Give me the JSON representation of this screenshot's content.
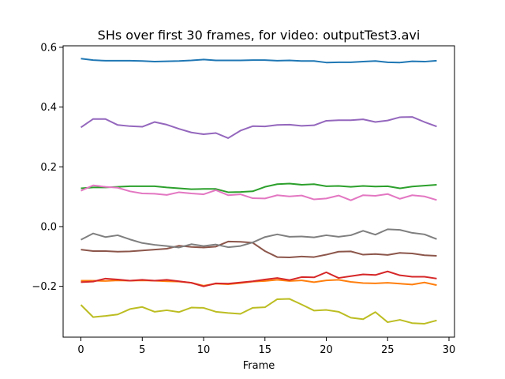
{
  "chart_data": {
    "type": "line",
    "title": "SHs over first 30 frames, for video: outputTest3.avi",
    "xlabel": "Frame",
    "ylabel": "",
    "xlim": [
      -1.45,
      30.45
    ],
    "ylim": [
      -0.37,
      0.605
    ],
    "xticks": [
      0,
      5,
      10,
      15,
      20,
      25,
      30
    ],
    "yticks": [
      -0.2,
      0.0,
      0.2,
      0.4,
      0.6
    ],
    "xtick_labels": [
      "0",
      "5",
      "10",
      "15",
      "20",
      "25",
      "30"
    ],
    "ytick_labels": [
      "−0.2",
      "0.0",
      "0.2",
      "0.4",
      "0.6"
    ],
    "grid": false,
    "legend": "none",
    "x": [
      0,
      1,
      2,
      3,
      4,
      5,
      6,
      7,
      8,
      9,
      10,
      11,
      12,
      13,
      14,
      15,
      16,
      17,
      18,
      19,
      20,
      21,
      22,
      23,
      24,
      25,
      26,
      27,
      28,
      29
    ],
    "series": [
      {
        "color": "#1f77b4",
        "values": [
          0.562,
          0.557,
          0.555,
          0.555,
          0.555,
          0.554,
          0.552,
          0.553,
          0.554,
          0.556,
          0.559,
          0.556,
          0.556,
          0.556,
          0.557,
          0.557,
          0.555,
          0.556,
          0.554,
          0.554,
          0.549,
          0.55,
          0.55,
          0.552,
          0.554,
          0.55,
          0.549,
          0.553,
          0.552,
          0.555
        ]
      },
      {
        "color": "#ff7f0e",
        "values": [
          -0.181,
          -0.181,
          -0.182,
          -0.18,
          -0.181,
          -0.18,
          -0.181,
          -0.183,
          -0.184,
          -0.188,
          -0.198,
          -0.191,
          -0.193,
          -0.189,
          -0.184,
          -0.182,
          -0.178,
          -0.182,
          -0.18,
          -0.186,
          -0.18,
          -0.178,
          -0.185,
          -0.189,
          -0.19,
          -0.188,
          -0.191,
          -0.194,
          -0.187,
          -0.196
        ]
      },
      {
        "color": "#2ca02c",
        "values": [
          0.128,
          0.131,
          0.131,
          0.133,
          0.135,
          0.135,
          0.135,
          0.131,
          0.128,
          0.125,
          0.126,
          0.126,
          0.115,
          0.116,
          0.118,
          0.133,
          0.142,
          0.144,
          0.14,
          0.142,
          0.135,
          0.136,
          0.133,
          0.136,
          0.134,
          0.135,
          0.128,
          0.134,
          0.137,
          0.14
        ]
      },
      {
        "color": "#d62728",
        "values": [
          -0.186,
          -0.184,
          -0.174,
          -0.177,
          -0.181,
          -0.178,
          -0.181,
          -0.178,
          -0.183,
          -0.188,
          -0.2,
          -0.19,
          -0.191,
          -0.187,
          -0.183,
          -0.177,
          -0.172,
          -0.179,
          -0.169,
          -0.17,
          -0.153,
          -0.172,
          -0.166,
          -0.16,
          -0.162,
          -0.15,
          -0.163,
          -0.168,
          -0.168,
          -0.174
        ]
      },
      {
        "color": "#9467bd",
        "values": [
          0.332,
          0.36,
          0.36,
          0.34,
          0.336,
          0.334,
          0.35,
          0.341,
          0.327,
          0.315,
          0.309,
          0.313,
          0.296,
          0.321,
          0.336,
          0.335,
          0.34,
          0.341,
          0.337,
          0.339,
          0.354,
          0.356,
          0.356,
          0.359,
          0.35,
          0.355,
          0.366,
          0.367,
          0.35,
          0.335
        ]
      },
      {
        "color": "#8c564b",
        "values": [
          -0.077,
          -0.082,
          -0.082,
          -0.084,
          -0.083,
          -0.08,
          -0.077,
          -0.074,
          -0.064,
          -0.068,
          -0.07,
          -0.067,
          -0.05,
          -0.051,
          -0.054,
          -0.082,
          -0.102,
          -0.103,
          -0.1,
          -0.102,
          -0.094,
          -0.084,
          -0.083,
          -0.094,
          -0.092,
          -0.095,
          -0.088,
          -0.09,
          -0.096,
          -0.098
        ]
      },
      {
        "color": "#e377c2",
        "values": [
          0.12,
          0.138,
          0.133,
          0.13,
          0.118,
          0.111,
          0.11,
          0.106,
          0.115,
          0.111,
          0.108,
          0.122,
          0.105,
          0.108,
          0.095,
          0.094,
          0.105,
          0.101,
          0.104,
          0.091,
          0.094,
          0.104,
          0.088,
          0.105,
          0.103,
          0.109,
          0.093,
          0.105,
          0.101,
          0.089
        ]
      },
      {
        "color": "#7f7f7f",
        "values": [
          -0.044,
          -0.023,
          -0.035,
          -0.029,
          -0.043,
          -0.055,
          -0.061,
          -0.065,
          -0.07,
          -0.059,
          -0.065,
          -0.06,
          -0.069,
          -0.065,
          -0.053,
          -0.035,
          -0.026,
          -0.034,
          -0.033,
          -0.036,
          -0.029,
          -0.034,
          -0.029,
          -0.014,
          -0.027,
          -0.009,
          -0.011,
          -0.021,
          -0.026,
          -0.042
        ]
      },
      {
        "color": "#bcbd22",
        "values": [
          -0.262,
          -0.303,
          -0.299,
          -0.294,
          -0.276,
          -0.269,
          -0.285,
          -0.28,
          -0.286,
          -0.271,
          -0.272,
          -0.285,
          -0.289,
          -0.292,
          -0.272,
          -0.27,
          -0.243,
          -0.242,
          -0.261,
          -0.281,
          -0.279,
          -0.285,
          -0.305,
          -0.31,
          -0.286,
          -0.32,
          -0.312,
          -0.323,
          -0.325,
          -0.314
        ]
      }
    ]
  }
}
